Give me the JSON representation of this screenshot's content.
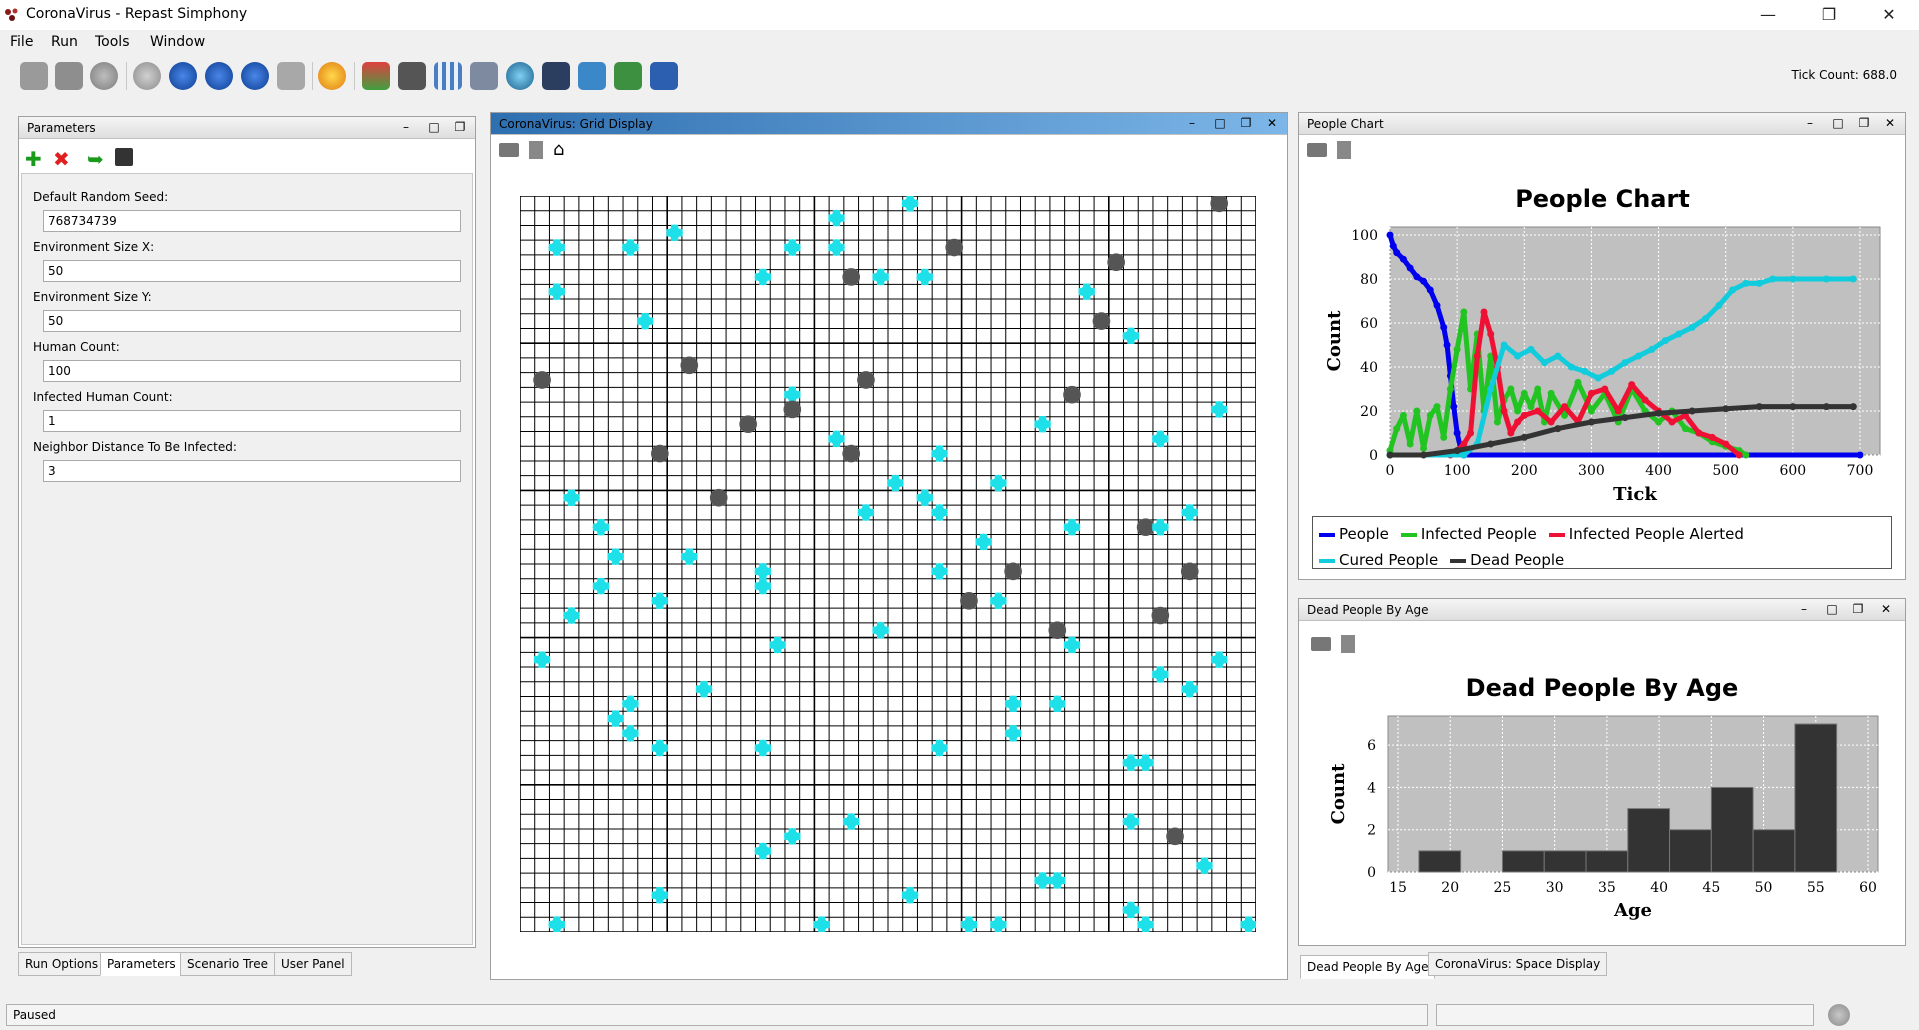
{
  "window": {
    "title": "CoronaVirus - Repast Simphony",
    "minimize": "—",
    "maximize": "❐",
    "close": "✕"
  },
  "menu": [
    "File",
    "Run",
    "Tools",
    "Window"
  ],
  "toolbar": {
    "tick_label": "Tick Count: 688.0"
  },
  "parameters": {
    "title": "Parameters",
    "fields": [
      {
        "label": "Default Random Seed:",
        "value": "768734739"
      },
      {
        "label": "Environment Size X:",
        "value": "50"
      },
      {
        "label": "Environment Size Y:",
        "value": "50"
      },
      {
        "label": "Human Count:",
        "value": "100"
      },
      {
        "label": "Infected Human Count:",
        "value": "1"
      },
      {
        "label": "Neighbor Distance To Be Infected:",
        "value": "3"
      }
    ],
    "tabs": [
      "Run Options",
      "Parameters",
      "Scenario Tree",
      "User Panel"
    ]
  },
  "grid_display": {
    "title": "CoronaVirus: Grid Display",
    "size": [
      50,
      50
    ],
    "colors": {
      "healthy": "#1ee0e8",
      "dead": "#555555"
    },
    "agents": [
      [
        26,
        0,
        "h"
      ],
      [
        47,
        0,
        "d"
      ],
      [
        21,
        1,
        "h"
      ],
      [
        10,
        2,
        "h"
      ],
      [
        2,
        3,
        "h"
      ],
      [
        7,
        3,
        "h"
      ],
      [
        18,
        3,
        "h"
      ],
      [
        21,
        3,
        "h"
      ],
      [
        29,
        3,
        "d"
      ],
      [
        40,
        4,
        "d"
      ],
      [
        16,
        5,
        "h"
      ],
      [
        22,
        5,
        "d"
      ],
      [
        24,
        5,
        "h"
      ],
      [
        27,
        5,
        "h"
      ],
      [
        2,
        6,
        "h"
      ],
      [
        38,
        6,
        "h"
      ],
      [
        8,
        8,
        "h"
      ],
      [
        39,
        8,
        "d"
      ],
      [
        41,
        9,
        "h"
      ],
      [
        11,
        11,
        "d"
      ],
      [
        1,
        12,
        "d"
      ],
      [
        23,
        12,
        "d"
      ],
      [
        18,
        13,
        "h"
      ],
      [
        37,
        13,
        "d"
      ],
      [
        18,
        14,
        "d"
      ],
      [
        15,
        15,
        "d"
      ],
      [
        35,
        15,
        "h"
      ],
      [
        21,
        16,
        "h"
      ],
      [
        43,
        16,
        "h"
      ],
      [
        47,
        14,
        "h"
      ],
      [
        9,
        17,
        "d"
      ],
      [
        22,
        17,
        "d"
      ],
      [
        28,
        17,
        "h"
      ],
      [
        13,
        20,
        "d"
      ],
      [
        3,
        20,
        "h"
      ],
      [
        25,
        19,
        "h"
      ],
      [
        27,
        20,
        "h"
      ],
      [
        32,
        19,
        "h"
      ],
      [
        23,
        21,
        "h"
      ],
      [
        28,
        21,
        "h"
      ],
      [
        5,
        22,
        "h"
      ],
      [
        37,
        22,
        "h"
      ],
      [
        42,
        22,
        "d"
      ],
      [
        43,
        22,
        "h"
      ],
      [
        45,
        21,
        "h"
      ],
      [
        31,
        23,
        "h"
      ],
      [
        6,
        24,
        "h"
      ],
      [
        11,
        24,
        "h"
      ],
      [
        16,
        25,
        "h"
      ],
      [
        28,
        25,
        "h"
      ],
      [
        33,
        25,
        "d"
      ],
      [
        45,
        25,
        "d"
      ],
      [
        5,
        26,
        "h"
      ],
      [
        16,
        26,
        "h"
      ],
      [
        9,
        27,
        "h"
      ],
      [
        30,
        27,
        "d"
      ],
      [
        32,
        27,
        "h"
      ],
      [
        3,
        28,
        "h"
      ],
      [
        43,
        28,
        "d"
      ],
      [
        24,
        29,
        "h"
      ],
      [
        36,
        29,
        "d"
      ],
      [
        17,
        30,
        "h"
      ],
      [
        37,
        30,
        "h"
      ],
      [
        1,
        31,
        "h"
      ],
      [
        47,
        31,
        "h"
      ],
      [
        43,
        32,
        "h"
      ],
      [
        12,
        33,
        "h"
      ],
      [
        45,
        33,
        "h"
      ],
      [
        7,
        34,
        "h"
      ],
      [
        33,
        34,
        "h"
      ],
      [
        36,
        34,
        "h"
      ],
      [
        6,
        35,
        "h"
      ],
      [
        7,
        36,
        "h"
      ],
      [
        33,
        36,
        "h"
      ],
      [
        9,
        37,
        "h"
      ],
      [
        16,
        37,
        "h"
      ],
      [
        28,
        37,
        "h"
      ],
      [
        41,
        38,
        "h"
      ],
      [
        42,
        38,
        "h"
      ],
      [
        22,
        42,
        "h"
      ],
      [
        41,
        42,
        "h"
      ],
      [
        44,
        43,
        "d"
      ],
      [
        18,
        43,
        "h"
      ],
      [
        16,
        44,
        "h"
      ],
      [
        46,
        45,
        "h"
      ],
      [
        35,
        46,
        "h"
      ],
      [
        36,
        46,
        "h"
      ],
      [
        9,
        47,
        "h"
      ],
      [
        26,
        47,
        "h"
      ],
      [
        41,
        48,
        "h"
      ],
      [
        2,
        49,
        "h"
      ],
      [
        20,
        49,
        "h"
      ],
      [
        30,
        49,
        "h"
      ],
      [
        32,
        49,
        "h"
      ],
      [
        42,
        49,
        "h"
      ],
      [
        49,
        49,
        "h"
      ]
    ]
  },
  "people_chart": {
    "panel_title": "People Chart",
    "chart_data": {
      "type": "line",
      "title": "People Chart",
      "xlabel": "Tick",
      "ylabel": "Count",
      "xlim": [
        0,
        700
      ],
      "ylim": [
        0,
        100
      ],
      "xticks": [
        "0",
        "100",
        "200",
        "300",
        "400",
        "500",
        "600",
        "700"
      ],
      "yticks": [
        "0",
        "20",
        "40",
        "60",
        "80",
        "100"
      ],
      "series": [
        {
          "name": "People",
          "color": "#0000ee",
          "x": [
            0,
            5,
            10,
            20,
            30,
            40,
            50,
            60,
            70,
            80,
            85,
            90,
            95,
            100,
            105,
            110,
            700
          ],
          "y": [
            100,
            95,
            92,
            89,
            85,
            81,
            79,
            75,
            68,
            58,
            50,
            36,
            22,
            10,
            3,
            0,
            0
          ]
        },
        {
          "name": "Infected People",
          "color": "#22c422",
          "x": [
            0,
            10,
            20,
            30,
            40,
            50,
            60,
            70,
            80,
            90,
            100,
            110,
            120,
            130,
            140,
            150,
            160,
            170,
            180,
            190,
            200,
            210,
            220,
            230,
            240,
            260,
            280,
            300,
            320,
            340,
            360,
            380,
            400,
            420,
            440,
            460,
            480,
            500,
            520,
            530
          ],
          "y": [
            2,
            12,
            18,
            5,
            20,
            3,
            18,
            22,
            8,
            30,
            48,
            65,
            30,
            55,
            20,
            45,
            15,
            25,
            30,
            20,
            28,
            22,
            30,
            15,
            28,
            18,
            33,
            20,
            28,
            15,
            30,
            20,
            15,
            20,
            12,
            10,
            6,
            4,
            2,
            0
          ]
        },
        {
          "name": "Infected People Alerted",
          "color": "#ee1133",
          "x": [
            90,
            100,
            110,
            120,
            130,
            140,
            150,
            160,
            170,
            180,
            190,
            200,
            220,
            240,
            260,
            280,
            300,
            320,
            340,
            360,
            380,
            400,
            420,
            440,
            460,
            480,
            500,
            520
          ],
          "y": [
            0,
            2,
            5,
            10,
            45,
            65,
            55,
            40,
            20,
            10,
            15,
            18,
            20,
            15,
            22,
            15,
            28,
            30,
            20,
            32,
            25,
            20,
            15,
            18,
            10,
            8,
            5,
            0
          ]
        },
        {
          "name": "Cured People",
          "color": "#11ccdd",
          "x": [
            0,
            110,
            130,
            150,
            170,
            190,
            210,
            230,
            250,
            270,
            290,
            310,
            330,
            350,
            370,
            390,
            410,
            430,
            450,
            470,
            490,
            510,
            530,
            550,
            570,
            600,
            650,
            690
          ],
          "y": [
            0,
            0,
            5,
            30,
            50,
            45,
            48,
            42,
            45,
            40,
            38,
            35,
            38,
            42,
            45,
            48,
            52,
            55,
            58,
            62,
            68,
            75,
            78,
            78,
            80,
            80,
            80,
            80
          ]
        },
        {
          "name": "Dead People",
          "color": "#333333",
          "x": [
            0,
            50,
            100,
            150,
            200,
            250,
            300,
            350,
            400,
            450,
            500,
            550,
            600,
            650,
            690
          ],
          "y": [
            0,
            0,
            2,
            5,
            8,
            12,
            15,
            17,
            19,
            20,
            21,
            22,
            22,
            22,
            22
          ]
        }
      ],
      "legend": "bottom"
    }
  },
  "dead_by_age": {
    "panel_title": "Dead People By Age",
    "chart_data": {
      "type": "bar",
      "title": "Dead People By Age",
      "xlabel": "Age",
      "ylabel": "Count",
      "xlim": [
        15,
        60
      ],
      "ylim": [
        0,
        7
      ],
      "xticks": [
        "15",
        "20",
        "25",
        "30",
        "35",
        "40",
        "45",
        "50",
        "55",
        "60"
      ],
      "yticks": [
        "0",
        "2",
        "4",
        "6"
      ],
      "bins": [
        [
          17,
          21,
          1
        ],
        [
          25,
          29,
          1
        ],
        [
          29,
          33,
          1
        ],
        [
          33,
          37,
          1
        ],
        [
          37,
          41,
          3
        ],
        [
          41,
          45,
          2
        ],
        [
          45,
          49,
          4
        ],
        [
          49,
          53,
          2
        ],
        [
          53,
          57,
          7
        ]
      ],
      "color": "#333333"
    },
    "tabs": [
      "Dead People By Age",
      "CoronaVirus: Space Display"
    ]
  },
  "status": {
    "text": "Paused"
  }
}
